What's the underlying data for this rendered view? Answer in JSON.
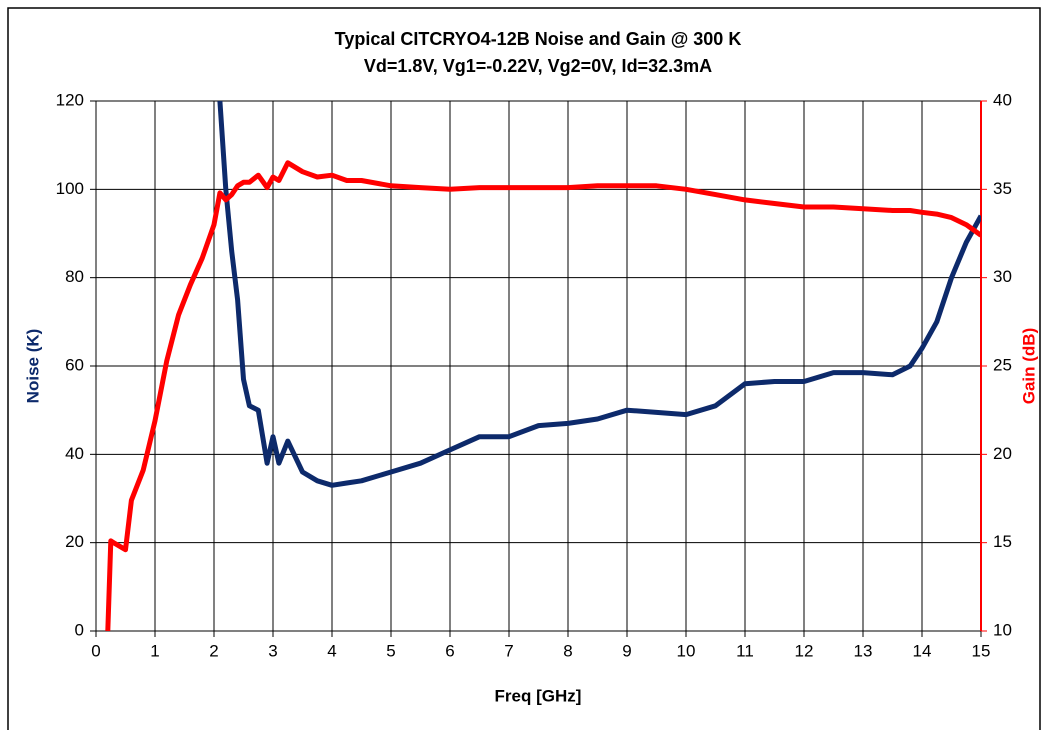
{
  "chart_data": {
    "type": "line",
    "title": "Typical CITCRYO4-12B Noise and Gain @ 300 K",
    "subtitle": "Vd=1.8V, Vg1=-0.22V, Vg2=0V, Id=32.3mA",
    "xlabel": "Freq [GHz]",
    "ylabel": "Noise (K)",
    "y2label": "Gain (dB)",
    "x": [
      0.2,
      0.25,
      0.3,
      0.5,
      0.6,
      0.8,
      1.0,
      1.2,
      1.4,
      1.6,
      1.8,
      2.0,
      2.1,
      2.2,
      2.3,
      2.4,
      2.5,
      2.6,
      2.75,
      2.9,
      3.0,
      3.1,
      3.25,
      3.5,
      3.75,
      4.0,
      4.25,
      4.5,
      5,
      5.5,
      6,
      6.5,
      7,
      7.5,
      8,
      8.5,
      9,
      9.5,
      10,
      10.5,
      11,
      11.5,
      12,
      12.5,
      13,
      13.5,
      13.8,
      14,
      14.25,
      14.5,
      14.75,
      15
    ],
    "series": [
      {
        "name": "Noise (K)",
        "color": "#0d2a6b",
        "axis": "y",
        "values": [
          null,
          null,
          null,
          null,
          null,
          null,
          null,
          null,
          null,
          null,
          null,
          null,
          120,
          100,
          86,
          75,
          57,
          51,
          50,
          38,
          44,
          38,
          43,
          36,
          34,
          33,
          33.5,
          34,
          36,
          38,
          41,
          44,
          44,
          46.5,
          47,
          48,
          50,
          49.5,
          49,
          51,
          56,
          56.5,
          56.5,
          58.5,
          58.5,
          58,
          60,
          64,
          70,
          80,
          88,
          94
        ]
      },
      {
        "name": "Gain (dB)",
        "color": "#ff0000",
        "axis": "y2",
        "values": [
          10,
          15.1,
          15,
          14.6,
          17.4,
          19.1,
          21.9,
          25.3,
          27.9,
          29.6,
          31.1,
          33,
          34.8,
          34.4,
          34.7,
          35.2,
          35.4,
          35.4,
          35.8,
          35.1,
          35.7,
          35.5,
          36.5,
          36,
          35.7,
          35.8,
          35.5,
          35.5,
          35.2,
          35.1,
          35,
          35.1,
          35.1,
          35.1,
          35.1,
          35.2,
          35.2,
          35.2,
          35,
          34.7,
          34.4,
          34.2,
          34,
          34,
          33.9,
          33.8,
          33.8,
          33.7,
          33.6,
          33.4,
          33,
          32.4
        ]
      }
    ],
    "xlim": [
      0,
      15
    ],
    "xticks": [
      0,
      1,
      2,
      3,
      4,
      5,
      6,
      7,
      8,
      9,
      10,
      11,
      12,
      13,
      14,
      15
    ],
    "ylim": [
      0,
      120
    ],
    "yticks": [
      0,
      20,
      40,
      60,
      80,
      100,
      120
    ],
    "y2lim": [
      10,
      40
    ],
    "y2ticks": [
      10,
      15,
      20,
      25,
      30,
      35,
      40
    ],
    "grid": true
  }
}
